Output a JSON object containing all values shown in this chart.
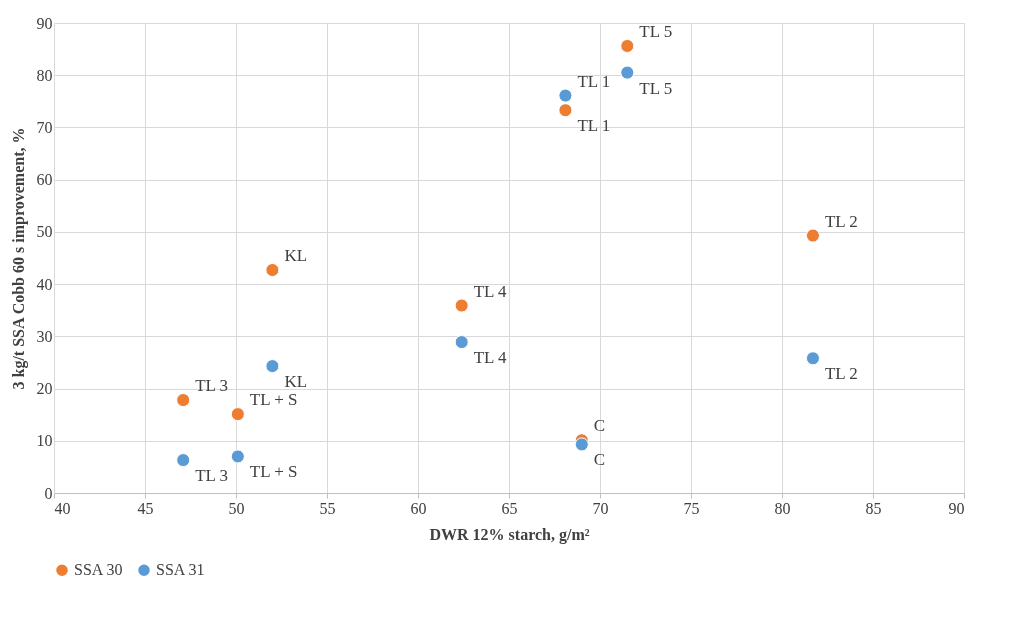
{
  "chart_data": {
    "type": "scatter",
    "xlabel": "DWR 12% starch, g/m²",
    "ylabel": "3 kg/t SSA Cobb 60 s improvement, %",
    "xlim": [
      40,
      90
    ],
    "xticks": [
      40,
      45,
      50,
      55,
      60,
      65,
      70,
      75,
      80,
      85,
      90
    ],
    "ylim": [
      0,
      90
    ],
    "yticks": [
      0,
      10,
      20,
      30,
      40,
      50,
      60,
      70,
      80,
      90
    ],
    "grid": true,
    "legend": "bottom",
    "marker": "circle",
    "series": [
      {
        "name": "SSA 30",
        "color": "#ed7d31",
        "x": [
          52,
          47.1,
          50.1,
          62.4,
          69,
          68.1,
          71.5,
          81.7
        ],
        "values": [
          42.7,
          17.8,
          15.1,
          35.9,
          10.1,
          73.3,
          85.6,
          49.3
        ]
      },
      {
        "name": "SSA 31",
        "color": "#5b9bd5",
        "x": [
          52,
          47.1,
          50.1,
          62.4,
          69,
          68.1,
          71.5,
          81.7
        ],
        "values": [
          24.3,
          6.3,
          7,
          28.9,
          9.3,
          76.1,
          80.5,
          25.8
        ]
      }
    ],
    "annotations": [
      {
        "text": "KL",
        "x": 52,
        "y": 42.7
      },
      {
        "text": "TL 3",
        "x": 47.1,
        "y": 17.8
      },
      {
        "text": "TL + S",
        "x": 50.1,
        "y": 15.1
      },
      {
        "text": "TL 4",
        "x": 62.4,
        "y": 35.9
      },
      {
        "text": "C",
        "x": 69,
        "y": 10.1
      },
      {
        "text": "TL 1",
        "x": 68.1,
        "y": 73.3
      },
      {
        "text": "TL 5",
        "x": 71.5,
        "y": 85.6
      },
      {
        "text": "TL 2",
        "x": 81.7,
        "y": 49.3
      },
      {
        "text": "KL",
        "x": 52,
        "y": 24.3
      },
      {
        "text": "TL 3",
        "x": 47.1,
        "y": 6.3
      },
      {
        "text": "TL + S",
        "x": 50.1,
        "y": 7
      },
      {
        "text": "TL 4",
        "x": 62.4,
        "y": 28.9
      },
      {
        "text": "C",
        "x": 69,
        "y": 9.3
      },
      {
        "text": "TL 1",
        "x": 68.1,
        "y": 76.1
      },
      {
        "text": "TL 5",
        "x": 71.5,
        "y": 80.5
      },
      {
        "text": "TL 2",
        "x": 81.7,
        "y": 25.8
      }
    ]
  }
}
